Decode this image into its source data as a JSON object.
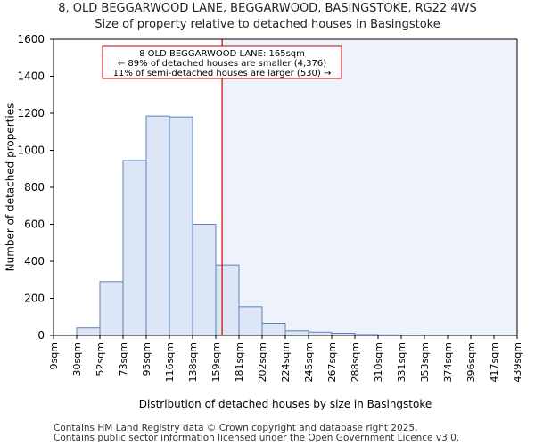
{
  "chart_data": {
    "type": "bar",
    "title": "8, OLD BEGGARWOOD LANE, BEGGARWOOD, BASINGSTOKE, RG22 4WS",
    "subtitle": "Size of property relative to detached houses in Basingstoke",
    "xlabel": "Distribution of detached houses by size in Basingstoke",
    "ylabel": "Number of detached properties",
    "bin_edges": [
      9,
      30,
      52,
      73,
      95,
      116,
      138,
      159,
      181,
      202,
      224,
      245,
      267,
      288,
      310,
      331,
      353,
      374,
      396,
      417,
      439
    ],
    "tick_labels": [
      "9sqm",
      "30sqm",
      "52sqm",
      "73sqm",
      "95sqm",
      "116sqm",
      "138sqm",
      "159sqm",
      "181sqm",
      "202sqm",
      "224sqm",
      "245sqm",
      "267sqm",
      "288sqm",
      "310sqm",
      "331sqm",
      "353sqm",
      "374sqm",
      "396sqm",
      "417sqm",
      "439sqm"
    ],
    "values": [
      0,
      40,
      290,
      945,
      1185,
      1180,
      600,
      380,
      155,
      65,
      25,
      18,
      12,
      5,
      3,
      2,
      0,
      0,
      0,
      0
    ],
    "ylim": [
      0,
      1600
    ],
    "yticks": [
      0,
      200,
      400,
      600,
      800,
      1000,
      1200,
      1400,
      1600
    ],
    "marker_value": 165,
    "marker_color": "#cc0000",
    "bar_fill": "#dce6f5",
    "bar_edge": "#5a82c0",
    "shade_fill": "#eef2fb",
    "annotation": {
      "line1": "8 OLD BEGGARWOOD LANE: 165sqm",
      "line2": "← 89% of detached houses are smaller (4,376)",
      "line3": "11% of semi-detached houses are larger (530) →"
    }
  },
  "footer": {
    "line1": "Contains HM Land Registry data © Crown copyright and database right 2025.",
    "line2": "Contains public sector information licensed under the Open Government Licence v3.0."
  }
}
